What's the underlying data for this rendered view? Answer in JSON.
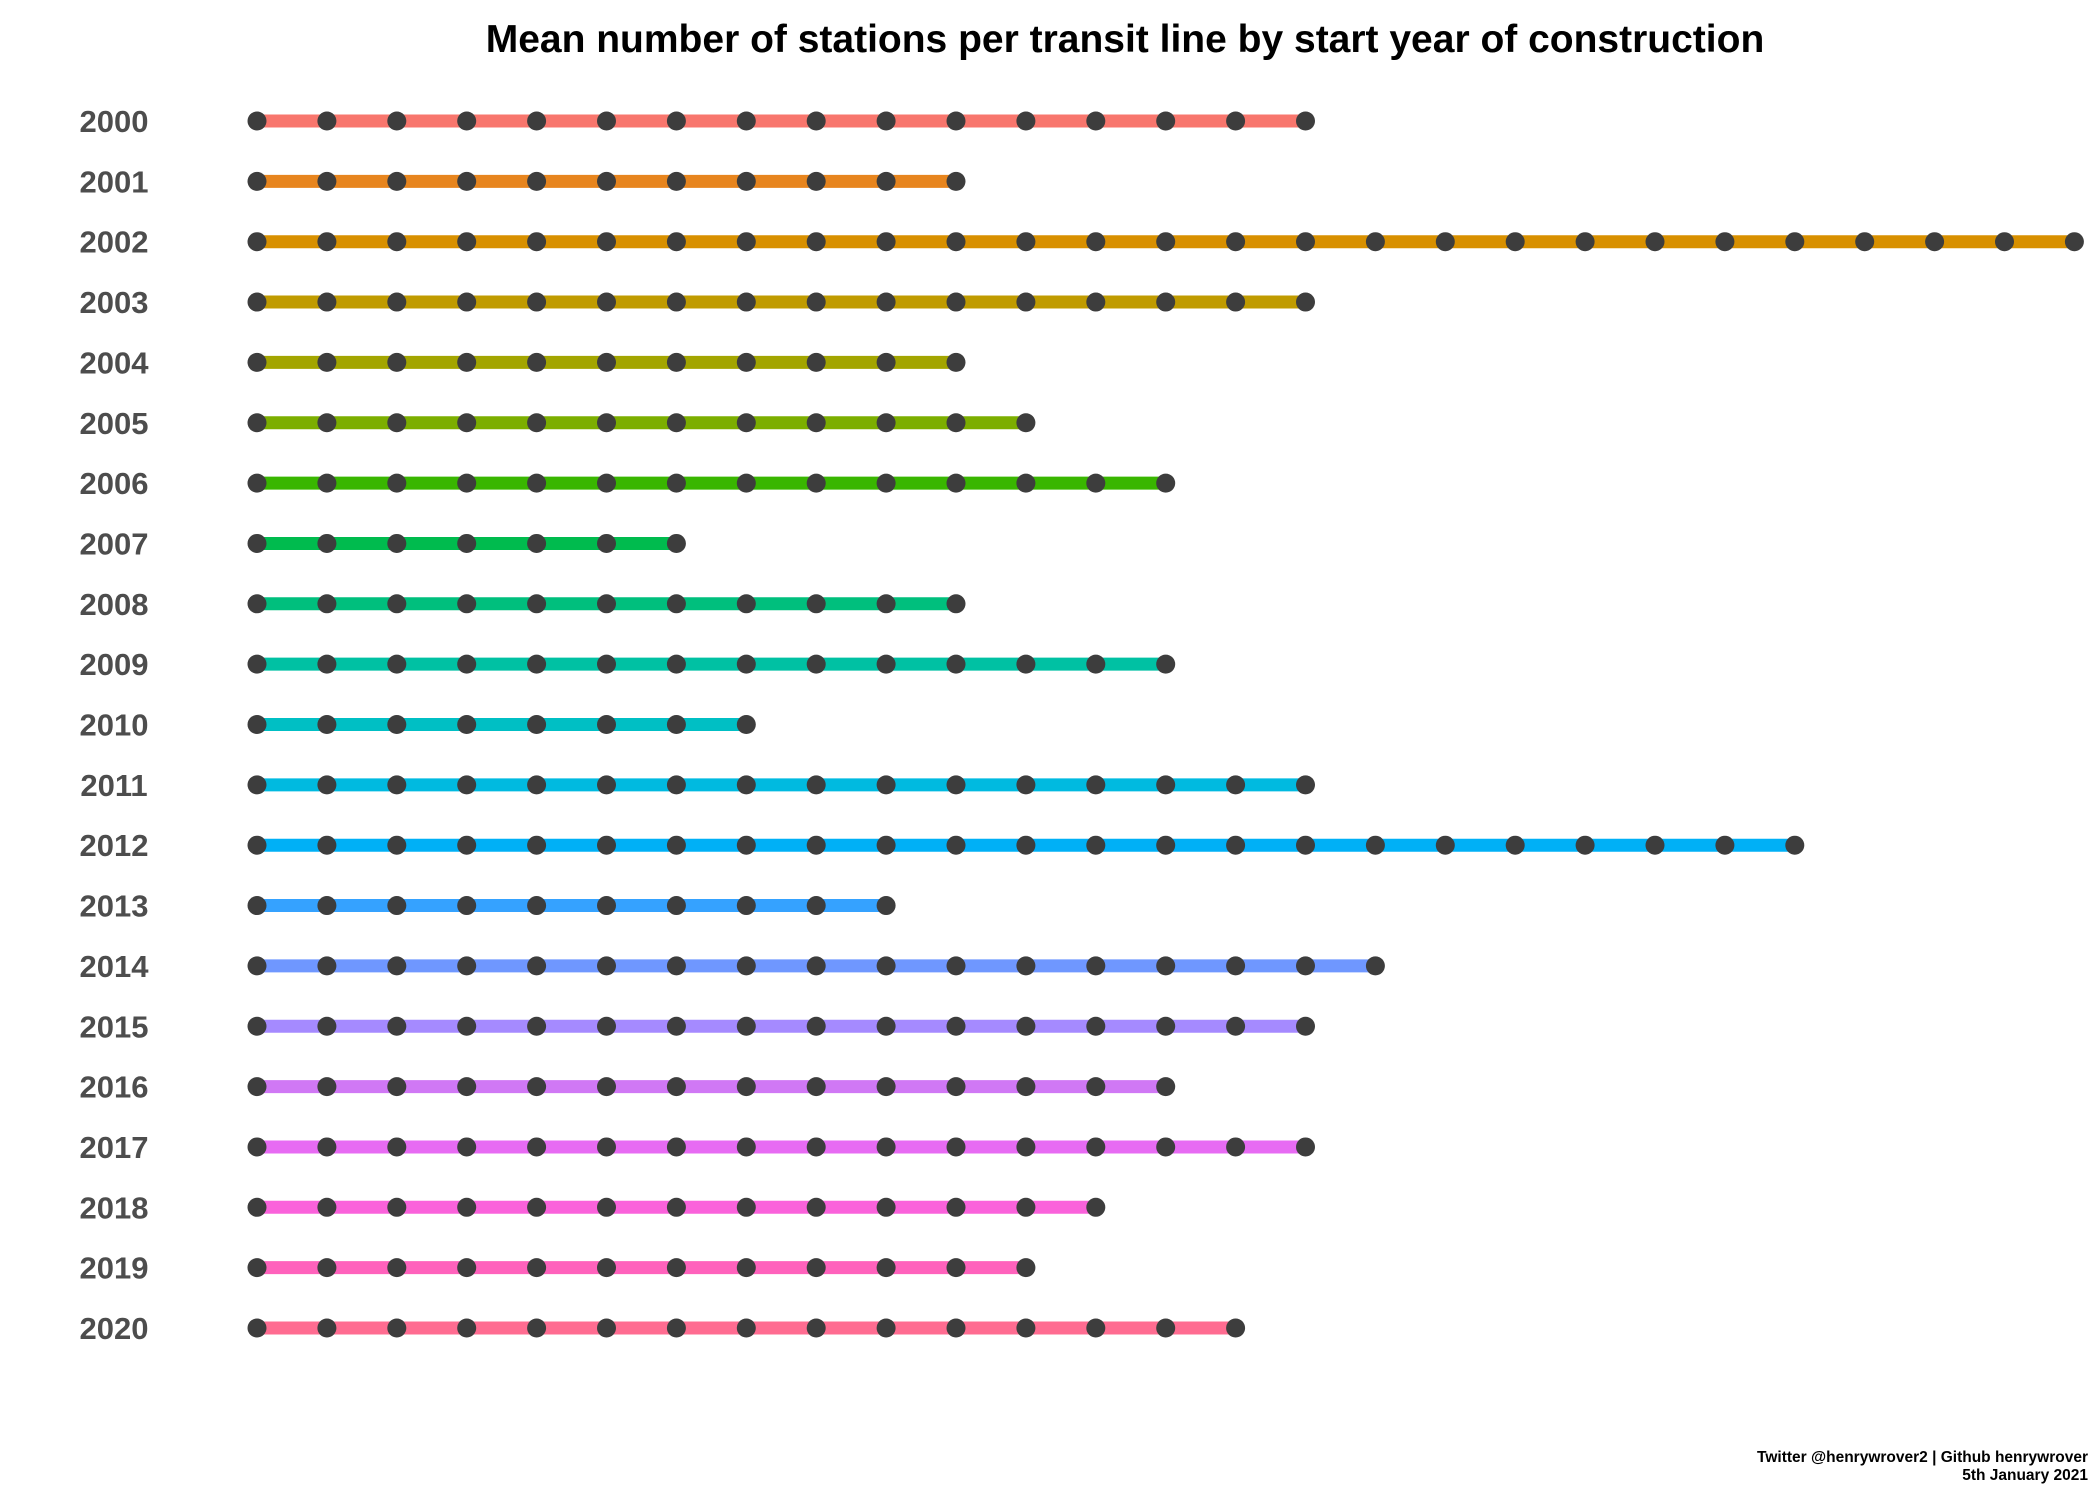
{
  "chart_data": {
    "type": "line",
    "title": "Mean number of stations per transit line by start year of construction",
    "xlabel": "",
    "ylabel": "",
    "grid": false,
    "legend": "none",
    "station_color": "#3d3d3d",
    "categories": [
      "2000",
      "2001",
      "2002",
      "2003",
      "2004",
      "2005",
      "2006",
      "2007",
      "2008",
      "2009",
      "2010",
      "2011",
      "2012",
      "2013",
      "2014",
      "2015",
      "2016",
      "2017",
      "2018",
      "2019",
      "2020"
    ],
    "values": [
      16,
      11,
      27,
      16,
      11,
      12,
      14,
      7,
      11,
      14,
      8,
      16,
      23,
      10,
      17,
      16,
      14,
      16,
      13,
      12,
      15
    ],
    "colors": [
      "#F8766D",
      "#E7851E",
      "#D89000",
      "#C09B00",
      "#A3A500",
      "#7CAE00",
      "#39B600",
      "#00BB4E",
      "#00BF7D",
      "#00C1A3",
      "#00BFC4",
      "#00BAE0",
      "#00B0F6",
      "#35A2FF",
      "#6F97FF",
      "#A58AFF",
      "#D078F5",
      "#E76BF3",
      "#FA62DB",
      "#FF62BC",
      "#FF6C91"
    ],
    "caption": [
      "Twitter @henrywrover2 | Github henrywrover",
      "5th January 2021"
    ]
  }
}
